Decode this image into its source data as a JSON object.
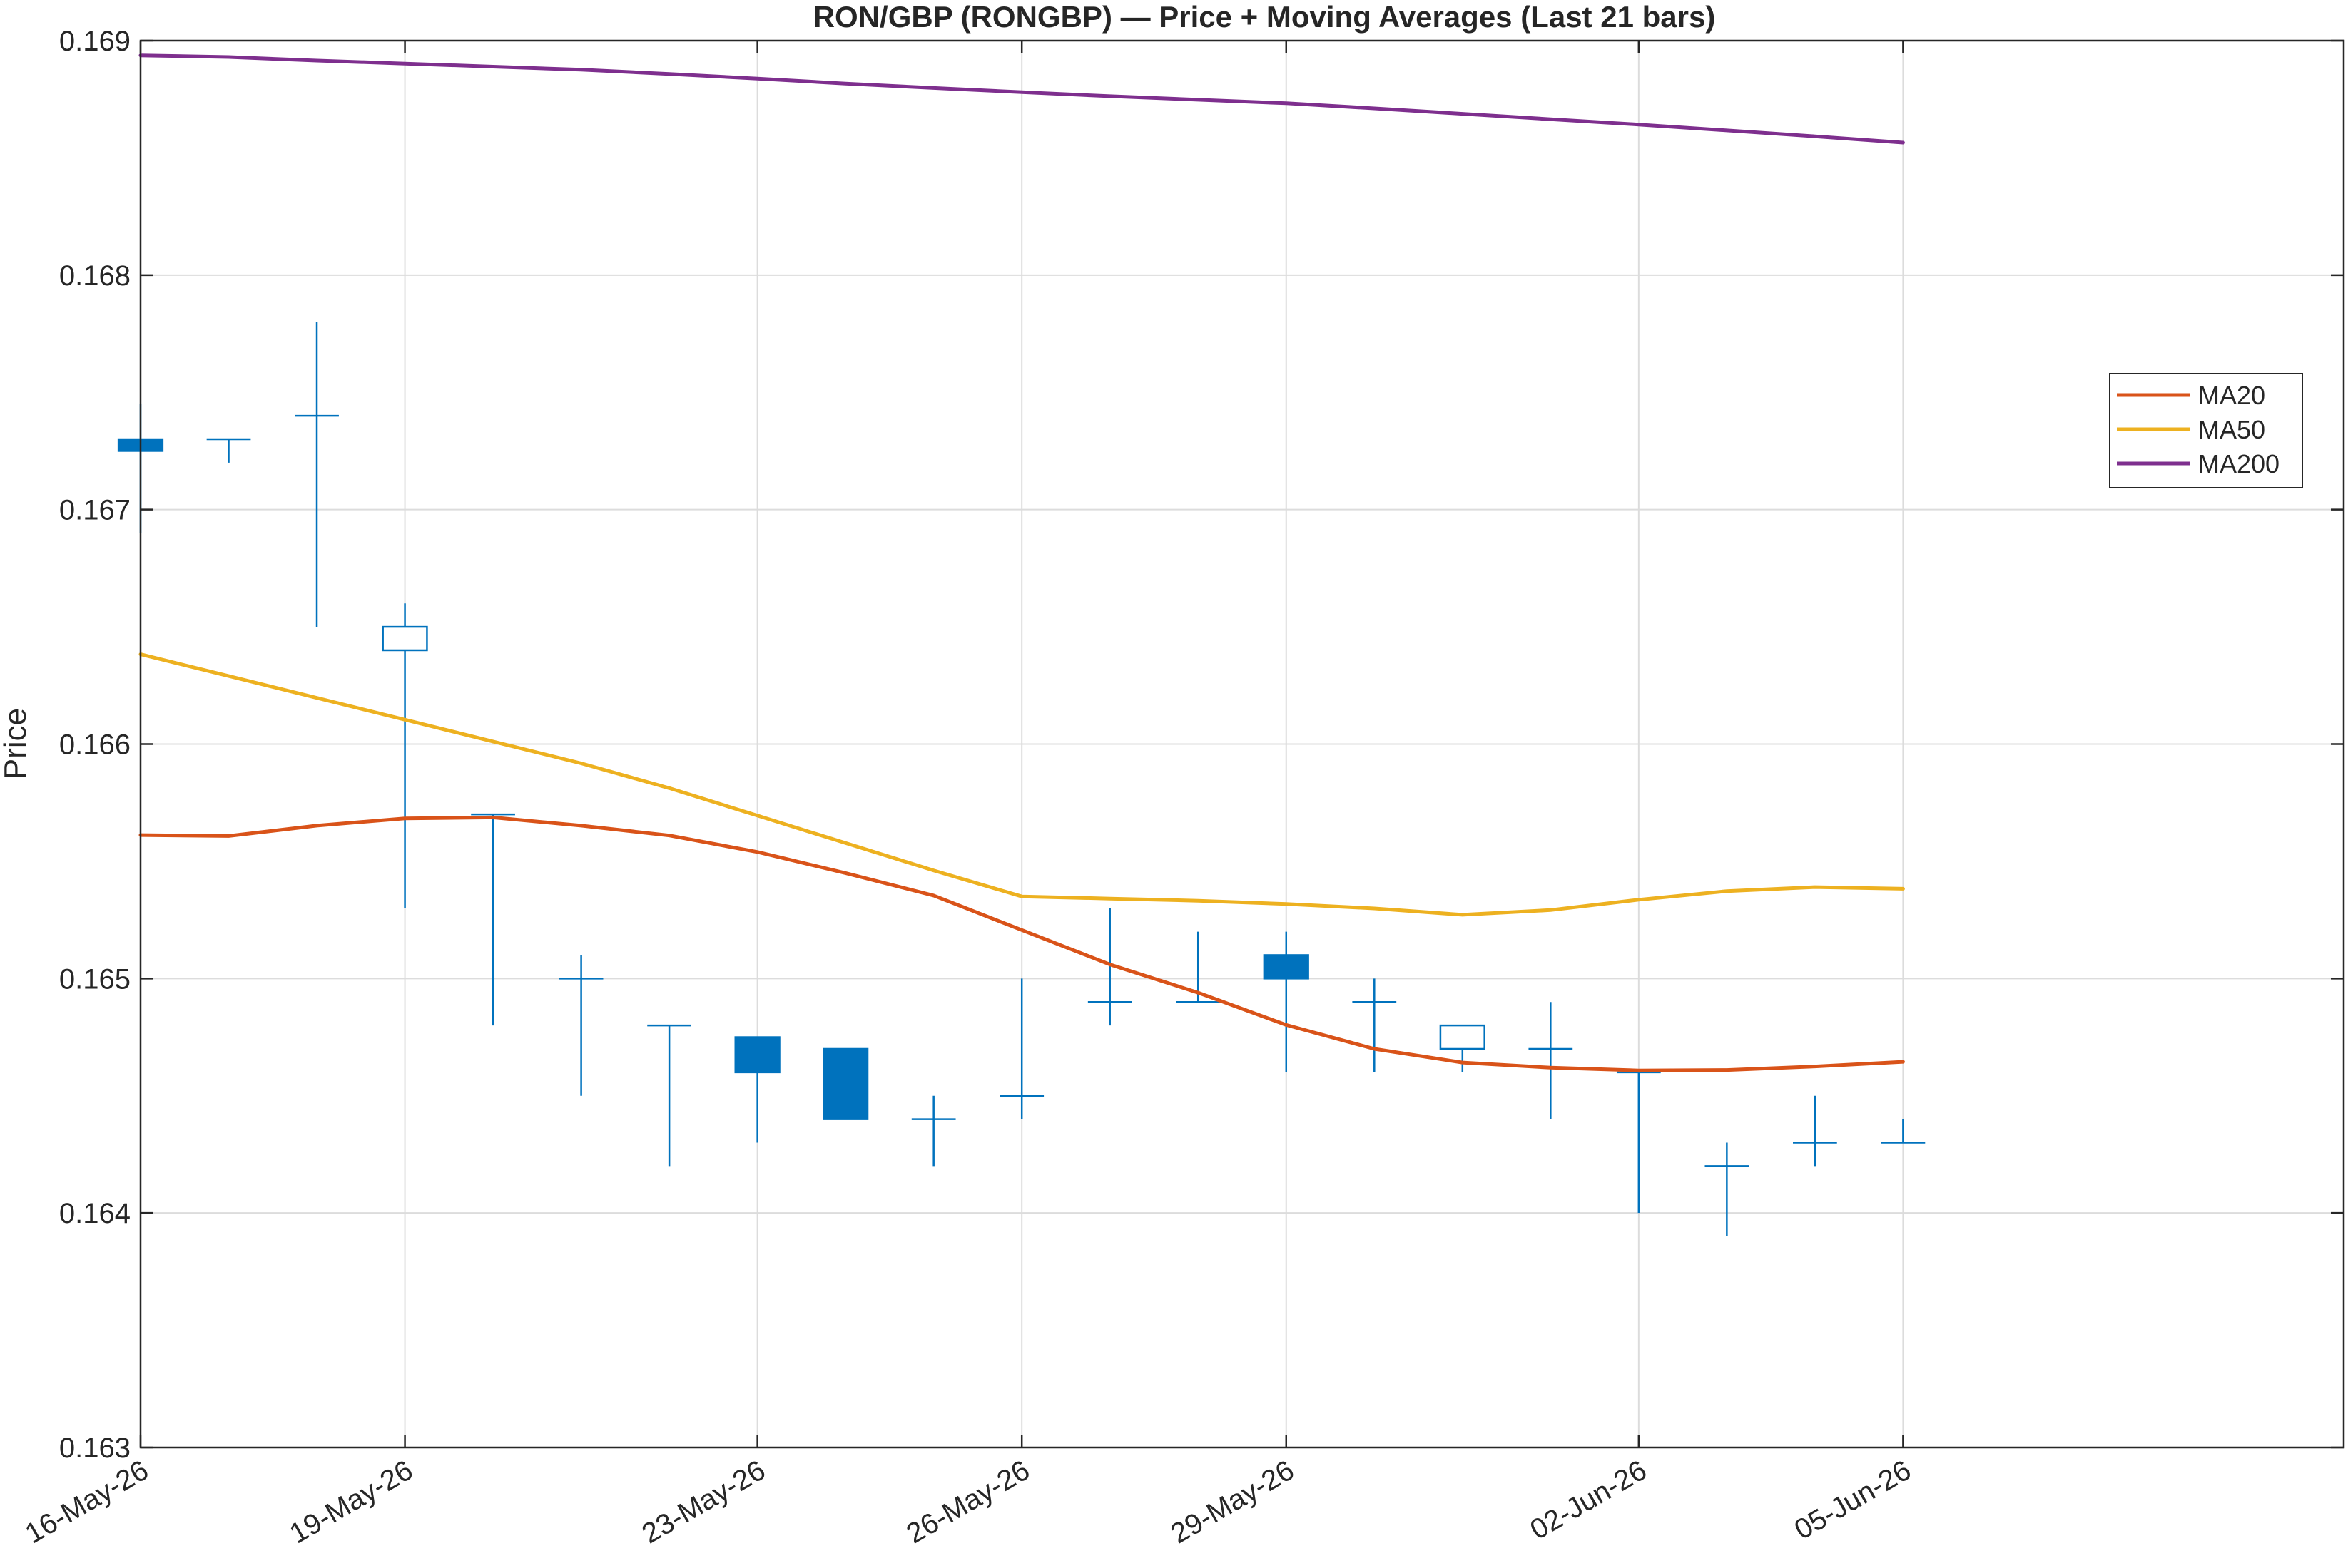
{
  "chart_data": {
    "type": "candlestick",
    "title": "RON/GBP (RONGBP) — Price + Moving Averages (Last 21 bars)",
    "xlabel": "",
    "ylabel": "Price",
    "ylim": [
      0.163,
      0.169
    ],
    "yticks": [
      0.163,
      0.164,
      0.165,
      0.166,
      0.167,
      0.168,
      0.169
    ],
    "xlim": [
      "2026-05-16",
      "2026-06-10"
    ],
    "xticks": [
      {
        "date": "2026-05-16",
        "label": "16-May-26"
      },
      {
        "date": "2026-05-19",
        "label": "19-May-26"
      },
      {
        "date": "2026-05-23",
        "label": "23-May-26"
      },
      {
        "date": "2026-05-26",
        "label": "26-May-26"
      },
      {
        "date": "2026-05-29",
        "label": "29-May-26"
      },
      {
        "date": "2026-06-02",
        "label": "02-Jun-26"
      },
      {
        "date": "2026-06-05",
        "label": "05-Jun-26"
      }
    ],
    "grid": true,
    "legend_position": "top-right",
    "candles": [
      {
        "date": "2026-05-16",
        "open": 0.1673,
        "high": 0.16745,
        "low": 0.1669,
        "close": 0.16725
      },
      {
        "date": "2026-05-17",
        "open": 0.1673,
        "high": 0.1673,
        "low": 0.1672,
        "close": 0.1673
      },
      {
        "date": "2026-05-18",
        "open": 0.1674,
        "high": 0.1678,
        "low": 0.1665,
        "close": 0.1674
      },
      {
        "date": "2026-05-19",
        "open": 0.1664,
        "high": 0.1666,
        "low": 0.1653,
        "close": 0.1665
      },
      {
        "date": "2026-05-20",
        "open": 0.1657,
        "high": 0.1657,
        "low": 0.1648,
        "close": 0.1657
      },
      {
        "date": "2026-05-21",
        "open": 0.165,
        "high": 0.1651,
        "low": 0.1645,
        "close": 0.165
      },
      {
        "date": "2026-05-22",
        "open": 0.1648,
        "high": 0.1648,
        "low": 0.1642,
        "close": 0.1648
      },
      {
        "date": "2026-05-23",
        "open": 0.16475,
        "high": 0.16475,
        "low": 0.1643,
        "close": 0.1646
      },
      {
        "date": "2026-05-24",
        "open": 0.1647,
        "high": 0.1647,
        "low": 0.1644,
        "close": 0.1644
      },
      {
        "date": "2026-05-25",
        "open": 0.1644,
        "high": 0.1645,
        "low": 0.1642,
        "close": 0.1644
      },
      {
        "date": "2026-05-26",
        "open": 0.1645,
        "high": 0.165,
        "low": 0.1644,
        "close": 0.1645
      },
      {
        "date": "2026-05-27",
        "open": 0.1649,
        "high": 0.1653,
        "low": 0.1648,
        "close": 0.1649
      },
      {
        "date": "2026-05-28",
        "open": 0.1649,
        "high": 0.1652,
        "low": 0.1649,
        "close": 0.1649
      },
      {
        "date": "2026-05-29",
        "open": 0.1651,
        "high": 0.1652,
        "low": 0.1646,
        "close": 0.165
      },
      {
        "date": "2026-05-30",
        "open": 0.1649,
        "high": 0.165,
        "low": 0.1646,
        "close": 0.1649
      },
      {
        "date": "2026-05-31",
        "open": 0.1647,
        "high": 0.1648,
        "low": 0.1646,
        "close": 0.1648
      },
      {
        "date": "2026-06-01",
        "open": 0.1647,
        "high": 0.1649,
        "low": 0.1644,
        "close": 0.1647
      },
      {
        "date": "2026-06-02",
        "open": 0.1646,
        "high": 0.1646,
        "low": 0.164,
        "close": 0.1646
      },
      {
        "date": "2026-06-03",
        "open": 0.1642,
        "high": 0.1643,
        "low": 0.1639,
        "close": 0.1642
      },
      {
        "date": "2026-06-04",
        "open": 0.1643,
        "high": 0.1645,
        "low": 0.1642,
        "close": 0.1643
      },
      {
        "date": "2026-06-05",
        "open": 0.1643,
        "high": 0.1644,
        "low": 0.1643,
        "close": 0.1643
      }
    ],
    "series": [
      {
        "name": "MA20",
        "color": "#D95319",
        "values": [
          0.165612,
          0.165608,
          0.165652,
          0.165683,
          0.165687,
          0.165652,
          0.16561,
          0.16554,
          0.16545,
          0.165354,
          0.165207,
          0.16506,
          0.16494,
          0.164802,
          0.1647,
          0.164642,
          0.16462,
          0.164608,
          0.16461,
          0.164625,
          0.164645
        ]
      },
      {
        "name": "MA50",
        "color": "#EDB120",
        "values": [
          0.166383,
          0.16629,
          0.166197,
          0.166104,
          0.166011,
          0.165918,
          0.165812,
          0.165695,
          0.165578,
          0.165461,
          0.16535,
          0.165341,
          0.165332,
          0.165318,
          0.165299,
          0.165272,
          0.165292,
          0.165336,
          0.165373,
          0.16539,
          0.165383
        ]
      },
      {
        "name": "MA200",
        "color": "#7E2F8E",
        "values": [
          0.168937,
          0.16893,
          0.168915,
          0.168902,
          0.168889,
          0.168876,
          0.168858,
          0.168838,
          0.168817,
          0.168798,
          0.16878,
          0.168763,
          0.168748,
          0.168733,
          0.168711,
          0.168688,
          0.168665,
          0.168642,
          0.168617,
          0.168592,
          0.168565
        ]
      }
    ],
    "colors": {
      "candle": "#0072BD",
      "grid": "#dcdcdc",
      "axis": "#262626"
    }
  }
}
